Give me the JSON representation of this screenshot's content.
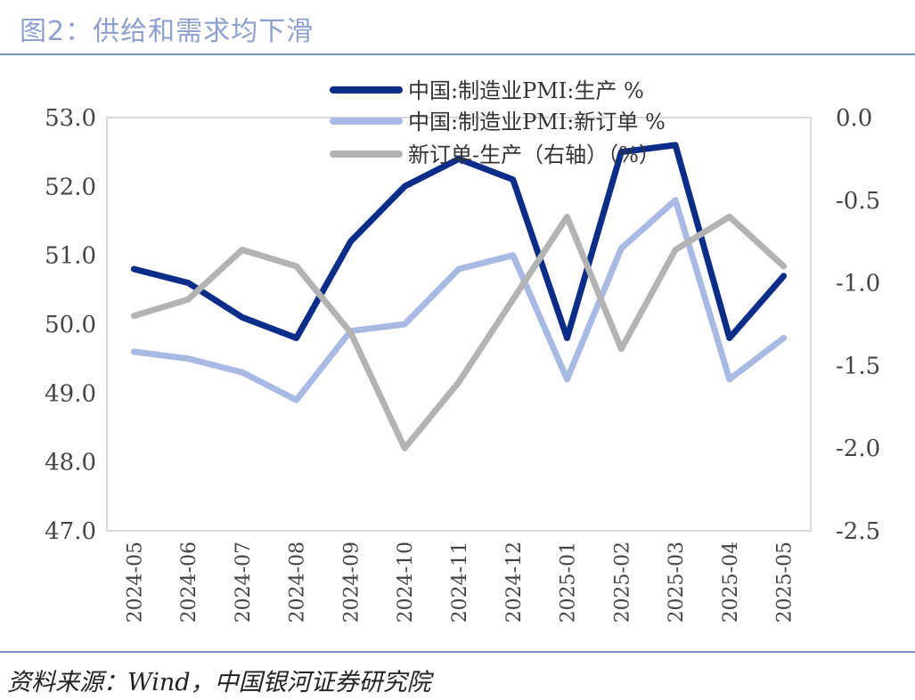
{
  "page": {
    "title": "图2：供给和需求均下滑",
    "source": "资料来源：Wind，中国银河证券研究院"
  },
  "chart_data": {
    "type": "line",
    "categories": [
      "2024-05",
      "2024-06",
      "2024-07",
      "2024-08",
      "2024-09",
      "2024-10",
      "2024-11",
      "2024-12",
      "2025-01",
      "2025-02",
      "2025-03",
      "2025-04",
      "2025-05"
    ],
    "series": [
      {
        "name": "中国:制造业PMI:生产 %",
        "axis": "left",
        "color": "#0b2d8a",
        "values": [
          50.8,
          50.6,
          50.1,
          49.8,
          51.2,
          52.0,
          52.4,
          52.1,
          49.8,
          52.5,
          52.6,
          49.8,
          50.7
        ]
      },
      {
        "name": "中国:制造业PMI:新订单 %",
        "axis": "left",
        "color": "#a8bae3",
        "values": [
          49.6,
          49.5,
          49.3,
          48.9,
          49.9,
          50.0,
          50.8,
          51.0,
          49.2,
          51.1,
          51.8,
          49.2,
          49.8
        ]
      },
      {
        "name": "新订单-生产（右轴）（%）",
        "axis": "right",
        "color": "#b3b3b3",
        "values": [
          -1.2,
          -1.1,
          -0.8,
          -0.9,
          -1.3,
          -2.0,
          -1.6,
          -1.1,
          -0.6,
          -1.4,
          -0.8,
          -0.6,
          -0.9
        ]
      }
    ],
    "y_left": {
      "min": 47.0,
      "max": 53.0,
      "ticks": [
        "53.0",
        "52.0",
        "51.0",
        "50.0",
        "49.0",
        "48.0",
        "47.0"
      ]
    },
    "y_right": {
      "min": -2.5,
      "max": 0.0,
      "ticks": [
        "0.0",
        "-0.5",
        "-1.0",
        "-1.5",
        "-2.0",
        "-2.5"
      ]
    },
    "grid": false,
    "legend_position": "top"
  }
}
